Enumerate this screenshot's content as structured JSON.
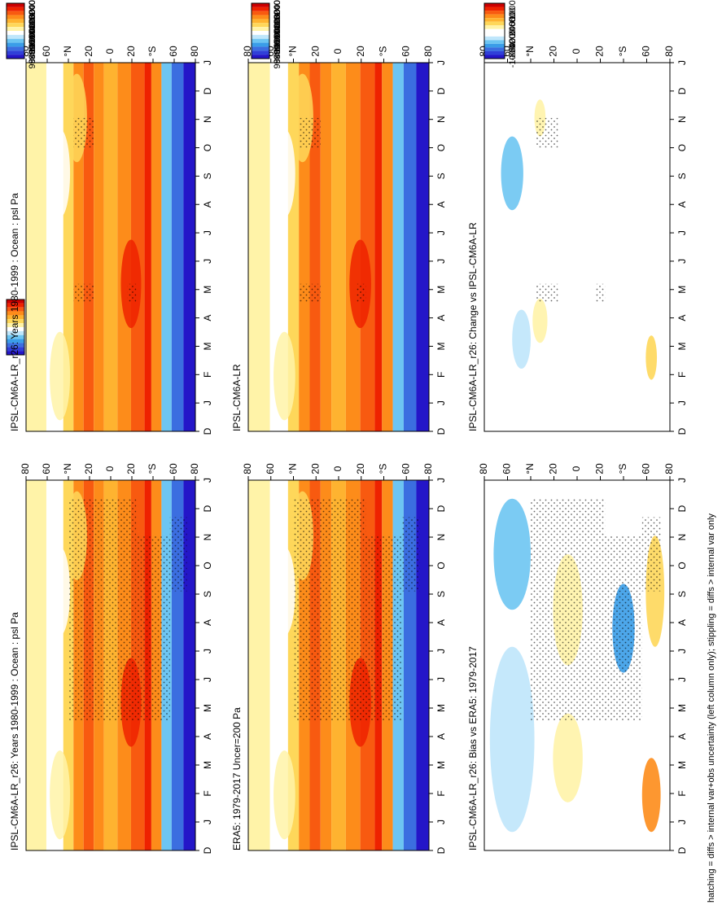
{
  "footnote": "hatching = diffs > internal var+obs uncertainty (left column only); stippling = diffs > internal var only",
  "months": [
    "D",
    "J",
    "F",
    "M",
    "A",
    "M",
    "J",
    "J",
    "A",
    "S",
    "O",
    "N",
    "D",
    "J"
  ],
  "lat_ticks": [
    "80",
    "60",
    "°N",
    "20",
    "0",
    "20",
    "°S",
    "60",
    "80"
  ],
  "colorbars": {
    "abs": {
      "labels": [
        "102400",
        "102000",
        "101600",
        "101200",
        "100800",
        "100400",
        "100000",
        "99600",
        "99200",
        "98800",
        "98400"
      ],
      "colors": [
        "#cc0000",
        "#ee2200",
        "#f85a10",
        "#fd8c1a",
        "#feb330",
        "#fed75a",
        "#fff3a8",
        "#ffffff",
        "#bfe6fb",
        "#6dc5f2",
        "#3a9de8",
        "#3b6ee0",
        "#3040d8",
        "#2416c8"
      ]
    },
    "diff": {
      "labels": [
        "1000",
        "800",
        "600",
        "400",
        "200",
        "0",
        "-200",
        "-400",
        "-600",
        "-800",
        "-1000"
      ],
      "colors": [
        "#cc0000",
        "#ee2200",
        "#f85a10",
        "#fd8c1a",
        "#feb330",
        "#fed75a",
        "#fff3a8",
        "#ffffff",
        "#ffffff",
        "#bfe6fb",
        "#6dc5f2",
        "#3a9de8",
        "#3b6ee0",
        "#3040d8",
        "#2416c8"
      ]
    }
  },
  "panels": [
    {
      "id": "left-top",
      "title": "IPSL-CM6A-LR_r26: Years 1980-1999 : Ocean : psl Pa",
      "kind": "abs"
    },
    {
      "id": "right-top",
      "title": "IPSL-CM6A-LR_r26: Years 1980-1999 : Ocean : psl Pa",
      "kind": "abs"
    },
    {
      "id": "left-mid",
      "title": "ERA5: 1979-2017 Uncer=200 Pa",
      "kind": "abs"
    },
    {
      "id": "right-mid",
      "title": "IPSL-CM6A-LR",
      "kind": "abs"
    },
    {
      "id": "left-bot",
      "title": "IPSL-CM6A-LR_r26: Bias vs ERA5: 1979-2017",
      "kind": "diff"
    },
    {
      "id": "right-bot",
      "title": "IPSL-CM6A-LR_r26: Change vs IPSL-CM6A-LR",
      "kind": "diff"
    }
  ],
  "chart_data": [
    {
      "type": "heatmap",
      "title": "IPSL-CM6A-LR_r26: Years 1980-1999 : Ocean : psl Pa",
      "x": "month (D..J)",
      "y": "latitude (80N..80S)",
      "units": "Pa",
      "range": [
        98400,
        102400
      ]
    },
    {
      "type": "heatmap",
      "title": "IPSL-CM6A-LR_r26: Years 1980-1999 : Ocean : psl Pa",
      "x": "month (D..J)",
      "y": "latitude (80N..80S)",
      "units": "Pa",
      "range": [
        98400,
        102400
      ]
    },
    {
      "type": "heatmap",
      "title": "ERA5: 1979-2017 Uncer=200 Pa",
      "x": "month (D..J)",
      "y": "latitude (80N..80S)",
      "units": "Pa",
      "range": [
        98400,
        102400
      ]
    },
    {
      "type": "heatmap",
      "title": "IPSL-CM6A-LR",
      "x": "month (D..J)",
      "y": "latitude (80N..80S)",
      "units": "Pa",
      "range": [
        98400,
        102400
      ]
    },
    {
      "type": "heatmap",
      "title": "IPSL-CM6A-LR_r26: Bias vs ERA5: 1979-2017",
      "x": "month (D..J)",
      "y": "latitude (80N..80S)",
      "units": "Pa",
      "range": [
        -1000,
        1000
      ]
    },
    {
      "type": "heatmap",
      "title": "IPSL-CM6A-LR_r26: Change vs IPSL-CM6A-LR",
      "x": "month (D..J)",
      "y": "latitude (80N..80S)",
      "units": "Pa",
      "range": [
        -1000,
        1000
      ]
    }
  ]
}
